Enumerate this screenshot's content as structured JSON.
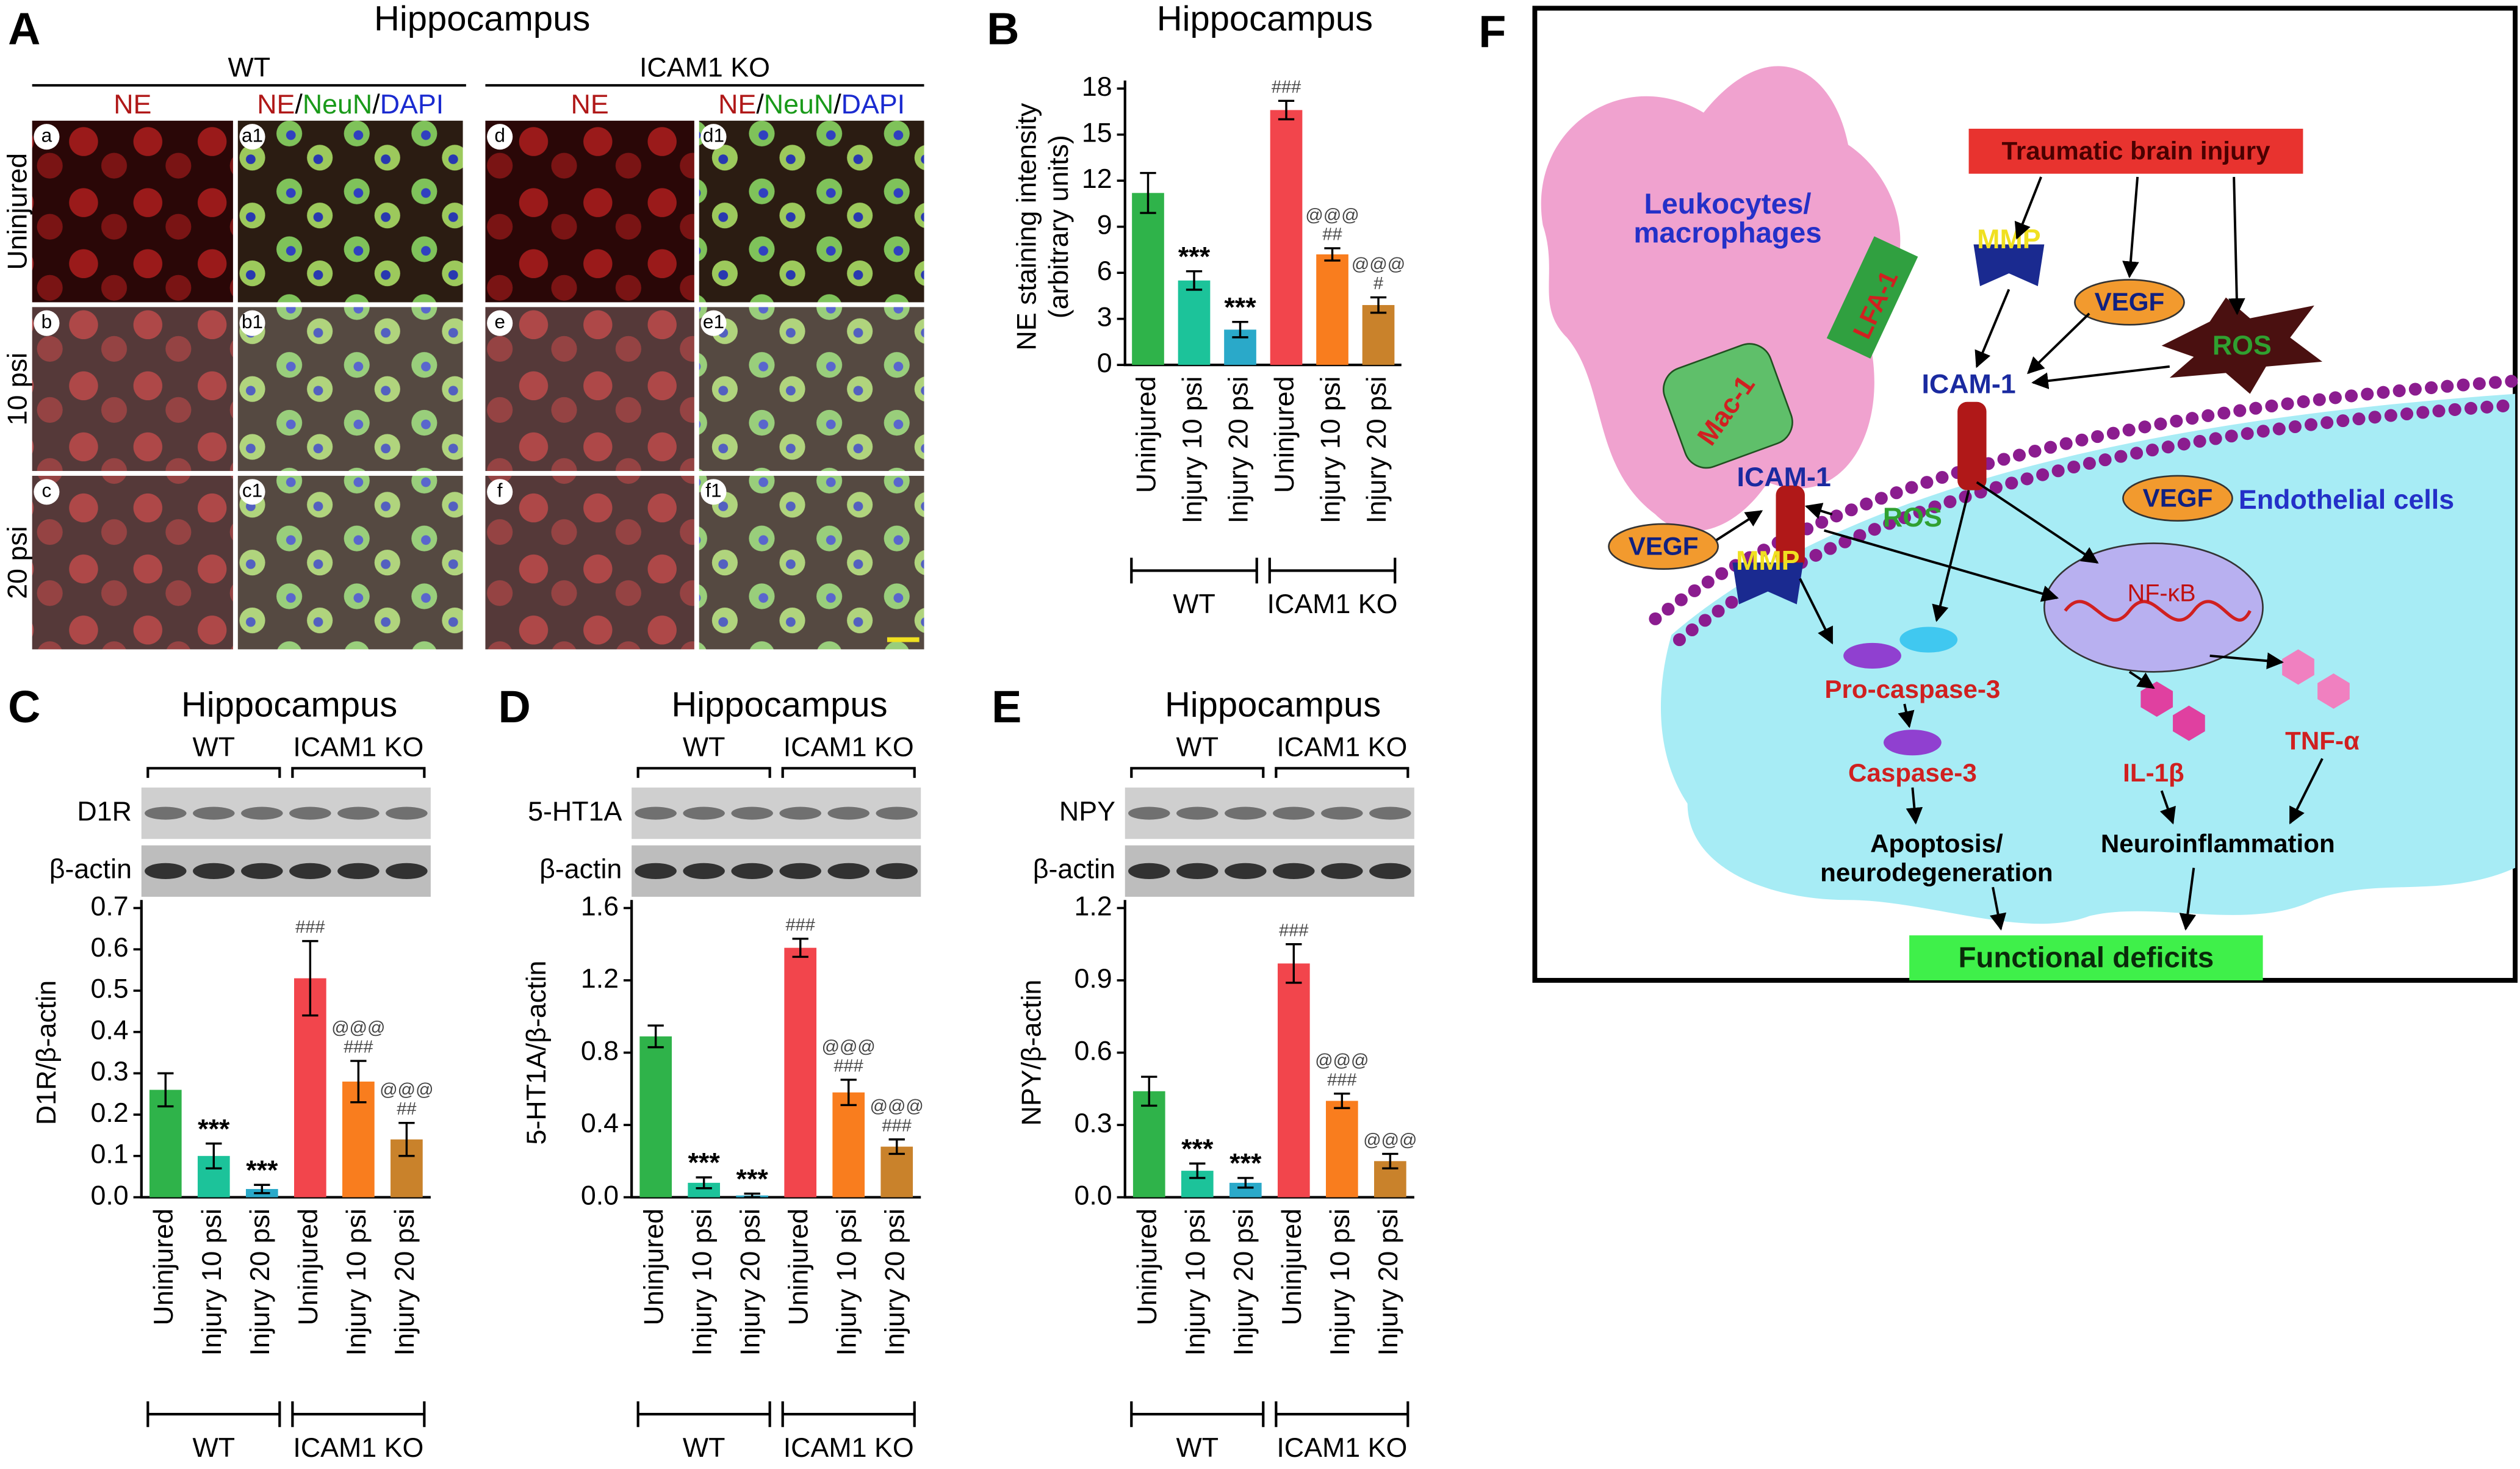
{
  "panel_a": {
    "letter": "A",
    "title": "Hippocampus",
    "groups": [
      "WT",
      "ICAM1 KO"
    ],
    "single_header": "NE",
    "merged_header": [
      "NE",
      "/",
      "NeuN",
      "/",
      "DAPI"
    ],
    "rows": [
      "Uninjured",
      "10 psi",
      "20 psi"
    ],
    "tiles": [
      [
        "a",
        "a1",
        "d",
        "d1"
      ],
      [
        "b",
        "b1",
        "e",
        "e1"
      ],
      [
        "c",
        "c1",
        "f",
        "f1"
      ]
    ]
  },
  "chart_data": [
    {
      "type": "bar",
      "panel": "B",
      "title": "Hippocampus",
      "ylabel": [
        "NE staining intensity",
        "(arbitrary units)"
      ],
      "categories": [
        "Uninjured",
        "Injury 10 psi",
        "Injury 20 psi",
        "Uninjured",
        "Injury 10 psi",
        "Injury 20 psi"
      ],
      "groups": [
        "WT",
        "ICAM1 KO"
      ],
      "values": [
        11.2,
        5.5,
        2.3,
        16.6,
        7.2,
        3.9
      ],
      "errors": [
        1.3,
        0.6,
        0.5,
        0.6,
        0.4,
        0.5
      ],
      "colors": [
        "#2fb34a",
        "#1cc39a",
        "#2aa9c9",
        "#f2454c",
        "#f97d1e",
        "#c9822b"
      ],
      "annotations": [
        [],
        [
          "***"
        ],
        [
          "***"
        ],
        [
          "###"
        ],
        [
          "##",
          "@@@"
        ],
        [
          "#",
          "@@@"
        ]
      ],
      "ylim": [
        0,
        18
      ],
      "yticks": [
        0,
        3,
        6,
        9,
        12,
        15,
        18
      ]
    },
    {
      "type": "bar",
      "panel": "C",
      "title": "Hippocampus",
      "blot": [
        "D1R",
        "β-actin"
      ],
      "ylabel": [
        "D1R/β-actin"
      ],
      "categories": [
        "Uninjured",
        "Injury 10 psi",
        "Injury 20 psi",
        "Uninjured",
        "Injury 10 psi",
        "Injury 20 psi"
      ],
      "groups": [
        "WT",
        "ICAM1 KO"
      ],
      "values": [
        0.26,
        0.1,
        0.02,
        0.53,
        0.28,
        0.14
      ],
      "errors": [
        0.04,
        0.03,
        0.01,
        0.09,
        0.05,
        0.04
      ],
      "colors": [
        "#2fb34a",
        "#1cc39a",
        "#2aa9c9",
        "#f2454c",
        "#f97d1e",
        "#c9822b"
      ],
      "annotations": [
        [],
        [
          "***"
        ],
        [
          "***"
        ],
        [
          "###"
        ],
        [
          "###",
          "@@@"
        ],
        [
          "##",
          "@@@"
        ]
      ],
      "ylim": [
        0,
        0.7
      ],
      "yticks": [
        {
          "value": 0,
          "label": "0.0"
        },
        0.1,
        0.2,
        0.3,
        0.4,
        0.5,
        0.6,
        0.7
      ]
    },
    {
      "type": "bar",
      "panel": "D",
      "title": "Hippocampus",
      "blot": [
        "5-HT1A",
        "β-actin"
      ],
      "ylabel": [
        "5-HT1A/β-actin"
      ],
      "categories": [
        "Uninjured",
        "Injury 10 psi",
        "Injury 20 psi",
        "Uninjured",
        "Injury 10 psi",
        "Injury 20 psi"
      ],
      "groups": [
        "WT",
        "ICAM1 KO"
      ],
      "values": [
        0.89,
        0.08,
        0.01,
        1.38,
        0.58,
        0.28
      ],
      "errors": [
        0.06,
        0.03,
        0.01,
        0.05,
        0.07,
        0.04
      ],
      "colors": [
        "#2fb34a",
        "#1cc39a",
        "#2aa9c9",
        "#f2454c",
        "#f97d1e",
        "#c9822b"
      ],
      "annotations": [
        [],
        [
          "***"
        ],
        [
          "***"
        ],
        [
          "###"
        ],
        [
          "###",
          "@@@"
        ],
        [
          "###",
          "@@@"
        ]
      ],
      "ylim": [
        0,
        1.6
      ],
      "yticks": [
        {
          "value": 0,
          "label": "0.0"
        },
        0.4,
        0.8,
        1.2,
        1.6
      ]
    },
    {
      "type": "bar",
      "panel": "E",
      "title": "Hippocampus",
      "blot": [
        "NPY",
        "β-actin"
      ],
      "ylabel": [
        "NPY/β-actin"
      ],
      "categories": [
        "Uninjured",
        "Injury 10 psi",
        "Injury 20 psi",
        "Uninjured",
        "Injury 10 psi",
        "Injury 20 psi"
      ],
      "groups": [
        "WT",
        "ICAM1 KO"
      ],
      "values": [
        0.44,
        0.11,
        0.06,
        0.97,
        0.4,
        0.15
      ],
      "errors": [
        0.06,
        0.03,
        0.02,
        0.08,
        0.03,
        0.03
      ],
      "colors": [
        "#2fb34a",
        "#1cc39a",
        "#2aa9c9",
        "#f2454c",
        "#f97d1e",
        "#c9822b"
      ],
      "annotations": [
        [],
        [
          "***"
        ],
        [
          "***"
        ],
        [
          "###"
        ],
        [
          "###",
          "@@@"
        ],
        [
          "@@@"
        ]
      ],
      "ylim": [
        0,
        1.2
      ],
      "yticks": [
        {
          "value": 0,
          "label": "0.0"
        },
        0.3,
        0.6,
        0.9,
        1.2
      ]
    }
  ],
  "panel_f": {
    "letter": "F",
    "trigger": "Traumatic brain injury",
    "leukocytes": [
      "Leukocytes/",
      "macrophages"
    ],
    "lfa": "LFA-1",
    "mmp_top": "MMP",
    "vegf_top": "VEGF",
    "ros_top": "ROS",
    "icam_top": "ICAM-1",
    "mac": "Mac-1",
    "vegf_mid": "VEGF",
    "endothelial": "Endothelial cells",
    "icam_mid": "ICAM-1",
    "ros_mid": "ROS",
    "vegf_left": "VEGF",
    "mmp_low": "MMP",
    "nfkb": "NF-κB",
    "procaspase": "Pro-caspase-3",
    "caspase": "Caspase-3",
    "il1b": "IL-1β",
    "tnf": "TNF-α",
    "apoptosis": [
      "Apoptosis/",
      "neurodegeneration"
    ],
    "neuroinflammation": "Neuroinflammation",
    "outcome": "Functional deficits"
  }
}
